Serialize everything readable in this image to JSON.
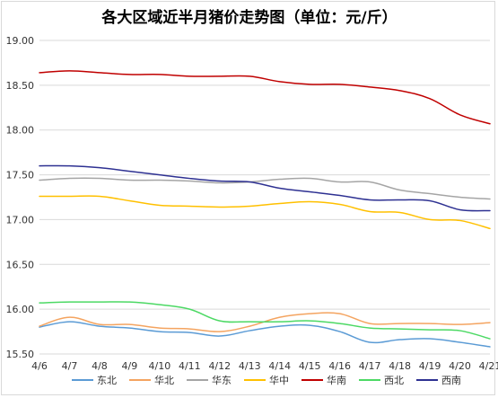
{
  "chart_data": {
    "type": "line",
    "title": "各大区域近半月猪价走势图（单位：元/斤）",
    "xlabel": "",
    "ylabel": "",
    "categories": [
      "4/6",
      "4/7",
      "4/8",
      "4/9",
      "4/10",
      "4/11",
      "4/12",
      "4/13",
      "4/14",
      "4/15",
      "4/16",
      "4/17",
      "4/18",
      "4/19",
      "4/20",
      "4/21"
    ],
    "ylim": [
      15.5,
      19.0
    ],
    "yticks": [
      "15.50",
      "16.00",
      "16.50",
      "17.00",
      "17.50",
      "18.00",
      "18.50",
      "19.00"
    ],
    "ytick_values": [
      15.5,
      16.0,
      16.5,
      17.0,
      17.5,
      18.0,
      18.5,
      19.0
    ],
    "grid": true,
    "legend_position": "bottom",
    "series": [
      {
        "name": "东北",
        "color": "#5b9bd5",
        "values": [
          15.8,
          15.86,
          15.81,
          15.79,
          15.75,
          15.74,
          15.7,
          15.76,
          15.81,
          15.82,
          15.75,
          15.63,
          15.66,
          15.67,
          15.63,
          15.58
        ]
      },
      {
        "name": "华北",
        "color": "#f4a460",
        "values": [
          15.81,
          15.91,
          15.83,
          15.83,
          15.79,
          15.78,
          15.75,
          15.81,
          15.91,
          15.95,
          15.95,
          15.84,
          15.84,
          15.84,
          15.83,
          15.85
        ]
      },
      {
        "name": "华东",
        "color": "#a5a5a5",
        "values": [
          17.44,
          17.46,
          17.46,
          17.44,
          17.44,
          17.43,
          17.41,
          17.42,
          17.45,
          17.46,
          17.42,
          17.42,
          17.33,
          17.29,
          17.25,
          17.23
        ]
      },
      {
        "name": "华中",
        "color": "#ffc000",
        "values": [
          17.26,
          17.26,
          17.26,
          17.21,
          17.16,
          17.15,
          17.14,
          17.15,
          17.18,
          17.2,
          17.17,
          17.09,
          17.08,
          17.0,
          16.99,
          16.9
        ]
      },
      {
        "name": "华南",
        "color": "#c00000",
        "values": [
          18.64,
          18.66,
          18.64,
          18.62,
          18.62,
          18.6,
          18.6,
          18.6,
          18.54,
          18.51,
          18.51,
          18.48,
          18.44,
          18.35,
          18.17,
          18.07
        ]
      },
      {
        "name": "西北",
        "color": "#4cd964",
        "values": [
          16.07,
          16.08,
          16.08,
          16.08,
          16.05,
          16.0,
          15.87,
          15.86,
          15.86,
          15.87,
          15.84,
          15.79,
          15.78,
          15.77,
          15.76,
          15.67
        ]
      },
      {
        "name": "西南",
        "color": "#2e3192",
        "values": [
          17.6,
          17.6,
          17.58,
          17.54,
          17.5,
          17.46,
          17.43,
          17.42,
          17.35,
          17.31,
          17.27,
          17.22,
          17.22,
          17.21,
          17.11,
          17.1
        ]
      }
    ]
  }
}
